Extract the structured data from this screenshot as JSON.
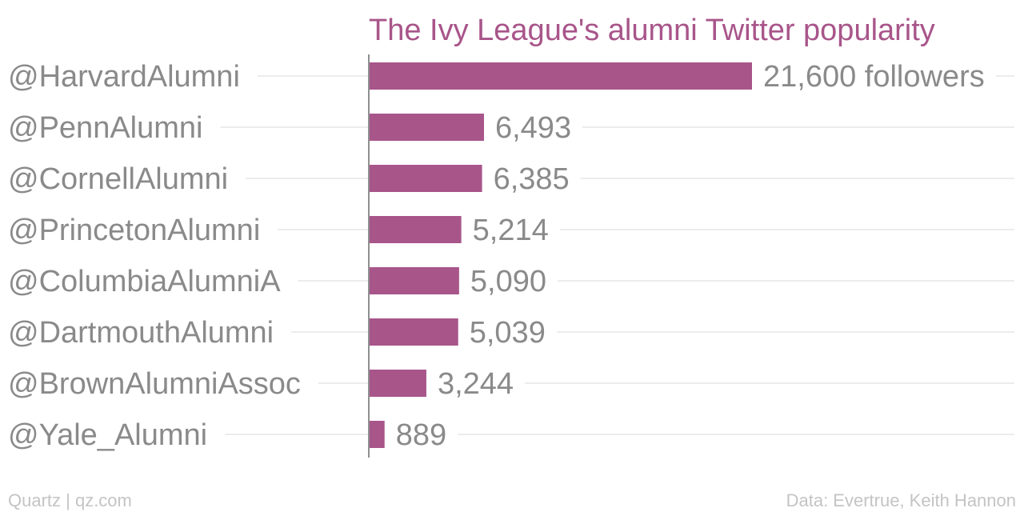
{
  "chart_data": {
    "type": "bar",
    "orientation": "horizontal",
    "title": "The Ivy League's alumni Twitter popularity",
    "categories": [
      "@HarvardAlumni",
      "@PennAlumni",
      "@CornellAlumni",
      "@PrincetonAlumni",
      "@ColumbiaAlumniA",
      "@DartmouthAlumni",
      "@BrownAlumniAssoc",
      "@Yale_Alumni"
    ],
    "values": [
      21600,
      6493,
      6385,
      5214,
      5090,
      5039,
      3244,
      889
    ],
    "value_labels": [
      "21,600 followers",
      "6,493",
      "6,385",
      "5,214",
      "5,090",
      "5,039",
      "3,244",
      "889"
    ],
    "xlim": [
      0,
      21600
    ],
    "grid": true,
    "bar_color": "#a8558a"
  },
  "footer": {
    "source_left": "Quartz | qz.com",
    "source_right": "Data: Evertrue, Keith Hannon"
  }
}
